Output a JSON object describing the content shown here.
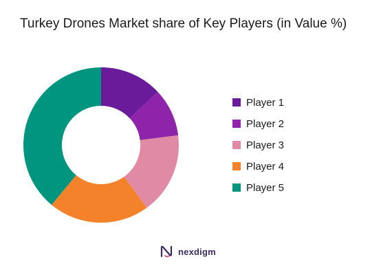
{
  "chart_data": {
    "type": "pie",
    "title": "Turkey Drones Market share of Key Players (in Value %)",
    "donut": true,
    "categories": [
      "Player 1",
      "Player 2",
      "Player 3",
      "Player 4",
      "Player 5"
    ],
    "values": [
      13,
      10,
      17,
      21,
      39
    ],
    "colors": [
      "#6a1b9a",
      "#8e24aa",
      "#e08aa6",
      "#f4822a",
      "#00957f"
    ],
    "legend_position": "right",
    "start_angle_deg": 0,
    "direction": "clockwise"
  },
  "brand": {
    "name": "nexdigm",
    "color": "#3d2a63",
    "logo_icon": "nexdigm-logo-icon"
  }
}
